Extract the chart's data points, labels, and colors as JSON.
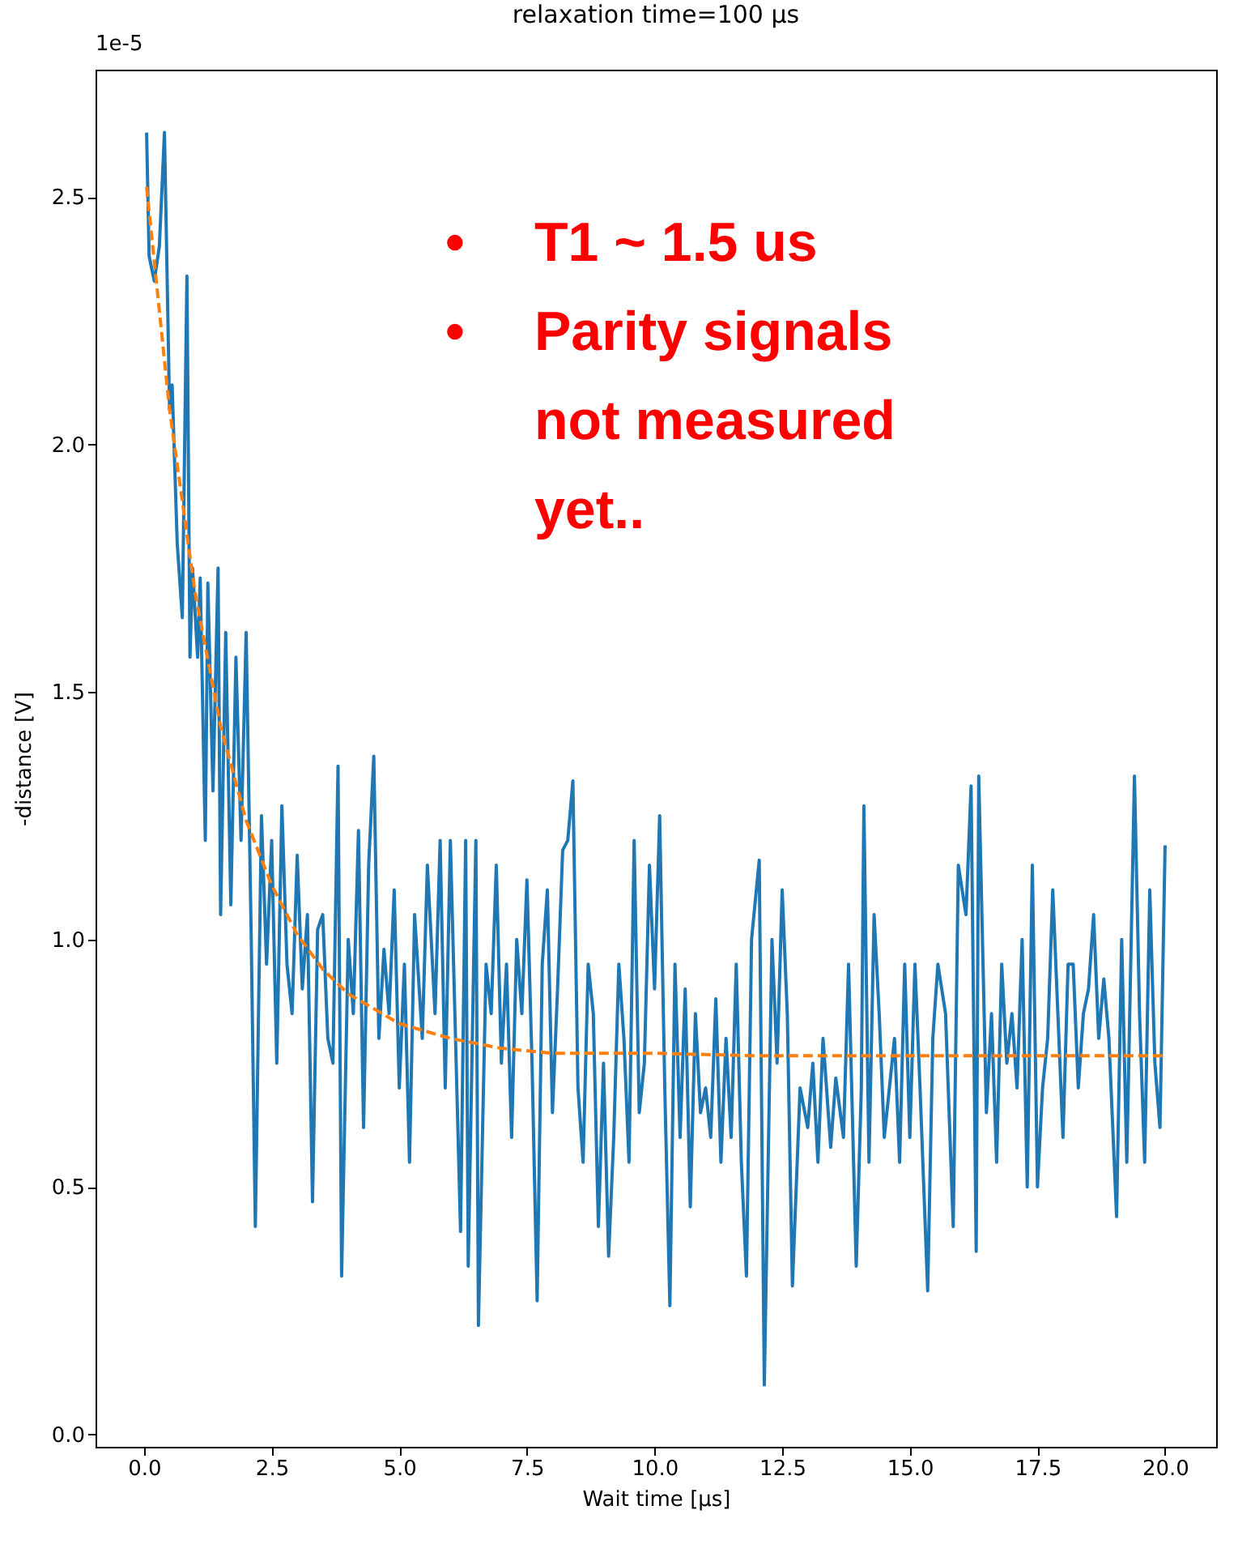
{
  "chart_data": {
    "type": "line",
    "title": "relaxation time=100 μs",
    "xlabel": "Wait time [μs]",
    "ylabel": "-distance [V]",
    "xlim": [
      -0.95,
      21.0
    ],
    "xticks": [
      {
        "value": 0,
        "label": "0.0"
      },
      2.5,
      {
        "value": 5,
        "label": "5.0"
      },
      7.5,
      {
        "value": 10,
        "label": "10.0"
      },
      12.5,
      {
        "value": 15,
        "label": "15.0"
      },
      17.5,
      {
        "value": 20,
        "label": "20.0"
      }
    ],
    "ylim": [
      -0.025,
      2.757
    ],
    "yticks": [
      {
        "value": 0,
        "label": "0.0"
      },
      0.5,
      {
        "value": 1,
        "label": "1.0"
      },
      1.5,
      {
        "value": 2,
        "label": "2.0"
      },
      2.5
    ],
    "marker": "none",
    "annotations": [
      "1e-5",
      "• T1 ~ 1.5 us",
      "• Parity signals not measured yet.."
    ],
    "series": [
      {
        "color": "#1f77b4",
        "line_style": "solid",
        "x": [
          0.05,
          0.1,
          0.2,
          0.3,
          0.4,
          0.5,
          0.55,
          0.65,
          0.75,
          0.84,
          0.9,
          0.95,
          1.05,
          1.1,
          1.2,
          1.25,
          1.35,
          1.45,
          1.5,
          1.6,
          1.7,
          1.8,
          1.9,
          2.0,
          2.1,
          2.18,
          2.3,
          2.4,
          2.5,
          2.6,
          2.7,
          2.8,
          2.9,
          3.0,
          3.1,
          3.2,
          3.3,
          3.4,
          3.5,
          3.6,
          3.7,
          3.8,
          3.87,
          4.0,
          4.1,
          4.2,
          4.3,
          4.4,
          4.5,
          4.6,
          4.7,
          4.8,
          4.9,
          5.0,
          5.1,
          5.2,
          5.3,
          5.45,
          5.55,
          5.7,
          5.8,
          5.9,
          6.0,
          6.2,
          6.3,
          6.35,
          6.5,
          6.55,
          6.7,
          6.8,
          6.9,
          7.0,
          7.1,
          7.2,
          7.3,
          7.4,
          7.5,
          7.6,
          7.7,
          7.8,
          7.9,
          8.0,
          8.1,
          8.2,
          8.3,
          8.4,
          8.5,
          8.6,
          8.7,
          8.8,
          8.9,
          9.0,
          9.1,
          9.2,
          9.3,
          9.4,
          9.5,
          9.6,
          9.7,
          9.8,
          9.9,
          10.0,
          10.1,
          10.2,
          10.3,
          10.4,
          10.5,
          10.6,
          10.7,
          10.8,
          10.9,
          11.0,
          11.1,
          11.2,
          11.3,
          11.4,
          11.5,
          11.6,
          11.7,
          11.8,
          11.9,
          12.05,
          12.15,
          12.3,
          12.4,
          12.5,
          12.6,
          12.7,
          12.85,
          13.0,
          13.1,
          13.2,
          13.3,
          13.45,
          13.55,
          13.7,
          13.8,
          13.95,
          14.05,
          14.1,
          14.2,
          14.3,
          14.4,
          14.5,
          14.6,
          14.7,
          14.8,
          14.9,
          15.0,
          15.1,
          15.2,
          15.35,
          15.45,
          15.55,
          15.7,
          15.85,
          15.95,
          16.1,
          16.2,
          16.3,
          16.35,
          16.5,
          16.6,
          16.7,
          16.8,
          16.9,
          17.0,
          17.1,
          17.2,
          17.3,
          17.4,
          17.5,
          17.6,
          17.7,
          17.8,
          17.9,
          18.0,
          18.1,
          18.2,
          18.3,
          18.4,
          18.5,
          18.6,
          18.7,
          18.8,
          18.9,
          19.05,
          19.15,
          19.25,
          19.4,
          19.5,
          19.6,
          19.7,
          19.8,
          19.9,
          20.0
        ],
        "values": [
          2.63,
          2.38,
          2.33,
          2.4,
          2.63,
          2.07,
          2.12,
          1.8,
          1.65,
          2.34,
          1.57,
          1.75,
          1.57,
          1.73,
          1.2,
          1.72,
          1.3,
          1.75,
          1.05,
          1.62,
          1.07,
          1.57,
          1.2,
          1.62,
          1.0,
          0.42,
          1.25,
          0.95,
          1.2,
          0.75,
          1.27,
          0.95,
          0.85,
          1.17,
          0.9,
          1.05,
          0.47,
          1.02,
          1.05,
          0.8,
          0.75,
          1.35,
          0.32,
          1.0,
          0.85,
          1.22,
          0.62,
          1.15,
          1.37,
          0.8,
          0.98,
          0.85,
          1.1,
          0.7,
          0.95,
          0.55,
          1.05,
          0.8,
          1.15,
          0.85,
          1.2,
          0.7,
          1.2,
          0.41,
          1.2,
          0.34,
          1.2,
          0.22,
          0.95,
          0.85,
          1.15,
          0.75,
          0.95,
          0.6,
          1.0,
          0.85,
          1.12,
          0.75,
          0.27,
          0.95,
          1.1,
          0.65,
          0.9,
          1.18,
          1.2,
          1.32,
          0.7,
          0.55,
          0.95,
          0.85,
          0.42,
          0.75,
          0.36,
          0.6,
          0.95,
          0.8,
          0.55,
          1.2,
          0.65,
          0.75,
          1.15,
          0.9,
          1.25,
          0.7,
          0.26,
          0.95,
          0.6,
          0.9,
          0.46,
          0.85,
          0.65,
          0.7,
          0.6,
          0.88,
          0.55,
          0.8,
          0.6,
          0.95,
          0.55,
          0.32,
          1.0,
          1.16,
          0.1,
          1.0,
          0.75,
          1.1,
          0.85,
          0.3,
          0.7,
          0.62,
          0.75,
          0.55,
          0.8,
          0.58,
          0.72,
          0.6,
          0.95,
          0.34,
          0.7,
          1.27,
          0.55,
          1.05,
          0.85,
          0.6,
          0.7,
          0.8,
          0.55,
          0.95,
          0.6,
          0.95,
          0.7,
          0.29,
          0.8,
          0.95,
          0.85,
          0.42,
          1.15,
          1.05,
          1.31,
          0.37,
          1.33,
          0.65,
          0.85,
          0.55,
          0.95,
          0.75,
          0.85,
          0.7,
          1.0,
          0.5,
          1.15,
          0.5,
          0.7,
          0.8,
          1.1,
          0.85,
          0.6,
          0.95,
          0.95,
          0.7,
          0.85,
          0.9,
          1.05,
          0.8,
          0.92,
          0.8,
          0.44,
          1.0,
          0.55,
          1.33,
          0.85,
          0.55,
          1.1,
          0.75,
          0.62,
          1.19
        ]
      },
      {
        "color": "#ff7f0e",
        "line_style": "dashed",
        "x": [
          0.05,
          0.5,
          1.0,
          1.5,
          2.0,
          2.5,
          3.0,
          3.5,
          4.0,
          5.0,
          6.0,
          7.0,
          8.0,
          10.0,
          12.0,
          16.0,
          20.0
        ],
        "values": [
          2.52,
          2.07,
          1.7,
          1.43,
          1.24,
          1.11,
          1.01,
          0.94,
          0.89,
          0.83,
          0.8,
          0.78,
          0.77,
          0.77,
          0.765,
          0.765,
          0.765
        ]
      }
    ]
  }
}
